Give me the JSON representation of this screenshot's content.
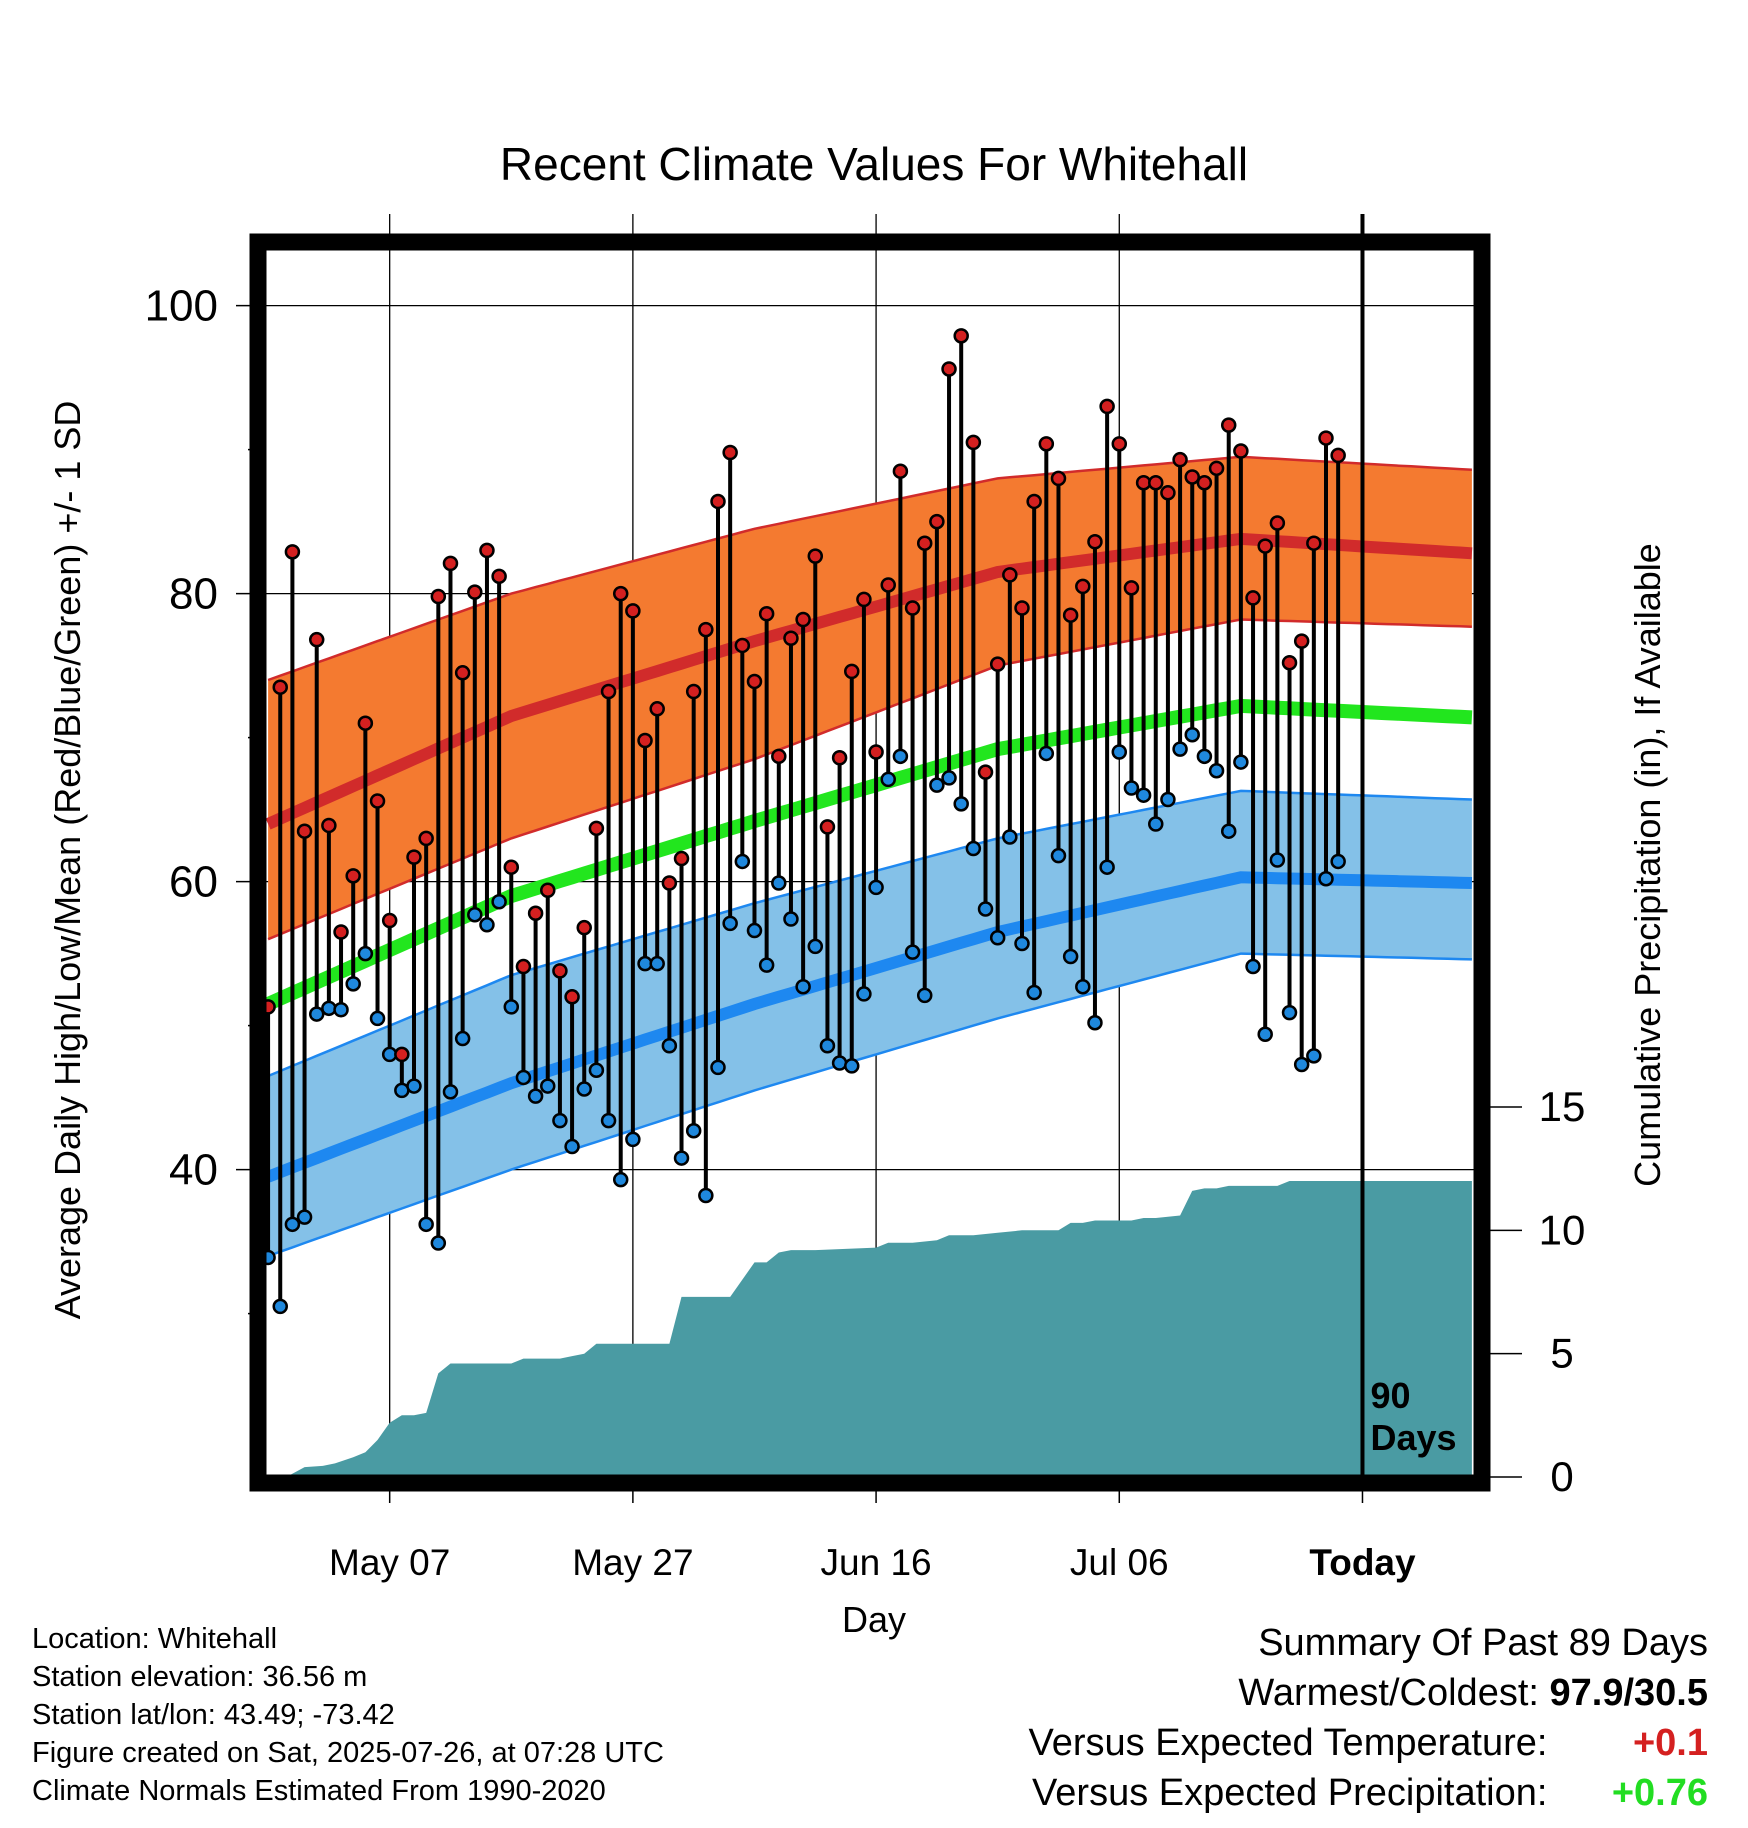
{
  "chart_data": {
    "type": "line",
    "title": "Recent Climate Values For Whitehall",
    "xlabel": "Day",
    "ylabel": "Average Daily High/Low/Mean (Red/Blue/Green) +/- 1 SD",
    "ylabel_right": "Cumulative Precipitation (in), If Available",
    "x_tick_labels": [
      "May 07",
      "May 27",
      "Jun 16",
      "Jul 06",
      "Today"
    ],
    "x_tick_days": [
      10,
      30,
      50,
      70,
      90
    ],
    "xlim_days": [
      -0.5,
      99.5
    ],
    "y_ticks": [
      "40",
      "60",
      "80",
      "100"
    ],
    "ylim": [
      19,
      104
    ],
    "y2_ticks": [
      "0",
      "5",
      "10",
      "15"
    ],
    "y2lim": [
      0,
      15
    ],
    "today_label": [
      "90",
      "Days"
    ],
    "grid": true,
    "colors": {
      "high_band": "#f47a30",
      "high_line": "#d12b2b",
      "low_band": "#84c1e8",
      "low_line": "#1e88f0",
      "mean_line": "#22e61e",
      "precip": "#4a9ba3",
      "high_point": "#d42020",
      "low_point": "#1f88dd"
    },
    "normal_curves": {
      "day": [
        0,
        20,
        40,
        60,
        80,
        99
      ],
      "high_mean": [
        64,
        71.5,
        76.7,
        81.5,
        83.8,
        82.8
      ],
      "high_sd_upper": [
        74,
        80,
        84.5,
        88,
        89.5,
        88.6
      ],
      "high_sd_lower": [
        56,
        63,
        68.5,
        75,
        78.2,
        77.7
      ],
      "low_mean": [
        39.5,
        46,
        51.5,
        56.5,
        60.3,
        59.9
      ],
      "low_sd_upper": [
        46.5,
        53.5,
        58.5,
        63,
        66.3,
        65.7
      ],
      "low_sd_lower": [
        34,
        40,
        45.5,
        50.5,
        55,
        54.6
      ],
      "daily_mean": [
        51.5,
        59,
        64.2,
        69.2,
        72.2,
        71.4
      ]
    },
    "series": [
      {
        "name": "High",
        "values": [
          51.3,
          73.5,
          82.9,
          63.5,
          76.8,
          63.9,
          56.5,
          60.4,
          71,
          65.6,
          57.3,
          48,
          61.7,
          63,
          79.8,
          82.1,
          74.5,
          80.1,
          83,
          81.2,
          61,
          54.1,
          57.8,
          59.4,
          53.8,
          52,
          56.8,
          63.7,
          73.2,
          80,
          78.8,
          69.8,
          72,
          59.9,
          61.6,
          73.2,
          77.5,
          86.4,
          89.8,
          76.4,
          73.9,
          78.6,
          68.7,
          76.9,
          78.2,
          82.6,
          63.8,
          68.6,
          74.6,
          79.6,
          69,
          80.6,
          88.5,
          79,
          83.5,
          85,
          95.6,
          97.9,
          90.5,
          67.6,
          75.1,
          81.3,
          79,
          86.4,
          90.4,
          88,
          78.5,
          80.5,
          83.6,
          93,
          90.4,
          80.4,
          87.7,
          87.7,
          87,
          89.3,
          88.1,
          87.7,
          88.7,
          91.7,
          89.9,
          79.7,
          83.3,
          84.9,
          75.2,
          76.7,
          83.5,
          90.8,
          89.6
        ]
      },
      {
        "name": "Low",
        "values": [
          33.9,
          30.5,
          36.2,
          36.7,
          50.8,
          51.2,
          51.1,
          52.9,
          55,
          50.5,
          48,
          45.5,
          45.8,
          36.2,
          34.9,
          45.4,
          49.1,
          57.7,
          57,
          58.6,
          51.3,
          46.4,
          45.1,
          45.8,
          43.4,
          41.6,
          45.6,
          46.9,
          43.4,
          39.3,
          42.1,
          54.3,
          54.3,
          48.6,
          40.8,
          42.7,
          38.2,
          47.1,
          57.1,
          61.4,
          56.6,
          54.2,
          59.9,
          57.4,
          52.7,
          55.5,
          48.6,
          47.4,
          47.2,
          52.2,
          59.6,
          67.1,
          68.7,
          55.1,
          52.1,
          66.7,
          67.2,
          65.4,
          62.3,
          58.1,
          56.1,
          63.1,
          55.7,
          52.3,
          68.9,
          61.8,
          54.8,
          52.7,
          50.2,
          61,
          69,
          66.5,
          66,
          64,
          65.7,
          69.2,
          70.2,
          68.7,
          67.7,
          63.5,
          68.3,
          54.1,
          49.4,
          61.5,
          50.9,
          47.3,
          47.9,
          60.2,
          61.4
        ]
      },
      {
        "name": "Cumulative Precipitation",
        "days": [
          0,
          1.5,
          3,
          4.5,
          5.5,
          7,
          8,
          9,
          10,
          11,
          12,
          13,
          14,
          15,
          17,
          20,
          21,
          24,
          25,
          26,
          27,
          28,
          30,
          33,
          34,
          37,
          38,
          40,
          41,
          42,
          43,
          45,
          50,
          51,
          53,
          55,
          56,
          58,
          60,
          62,
          63,
          65,
          66,
          67,
          68,
          71,
          72,
          73,
          75,
          76,
          77,
          78,
          79,
          80,
          83,
          84,
          99
        ],
        "values": [
          0,
          0,
          0.4,
          0.45,
          0.55,
          0.8,
          1.0,
          1.5,
          2.2,
          2.5,
          2.5,
          2.6,
          4.2,
          4.6,
          4.6,
          4.6,
          4.8,
          4.8,
          4.9,
          5.0,
          5.4,
          5.4,
          5.4,
          5.4,
          7.3,
          7.3,
          7.3,
          8.7,
          8.7,
          9.1,
          9.2,
          9.2,
          9.3,
          9.5,
          9.5,
          9.6,
          9.8,
          9.8,
          9.9,
          10.0,
          10.0,
          10.0,
          10.3,
          10.3,
          10.4,
          10.4,
          10.5,
          10.5,
          10.6,
          11.6,
          11.7,
          11.7,
          11.8,
          11.8,
          11.8,
          12.0,
          12.0
        ]
      }
    ]
  },
  "footer": {
    "location": "Location: Whitehall",
    "elevation": "Station elevation: 36.56 m",
    "latlon": "Station lat/lon: 43.49; -73.42",
    "created": "Figure created on Sat, 2025-07-26, at 07:28 UTC",
    "normals": "Climate Normals Estimated From 1990-2020"
  },
  "summary": {
    "title": "Summary Of Past 89 Days",
    "warmest_coldest_label": "Warmest/Coldest:",
    "warmest_coldest_value": "97.9/30.5",
    "temp_label": "Versus Expected Temperature:",
    "temp_value": "+0.1",
    "temp_color": "#d42020",
    "precip_label": "Versus Expected Precipitation:",
    "precip_value": "+0.76",
    "precip_color": "#22dd22"
  }
}
